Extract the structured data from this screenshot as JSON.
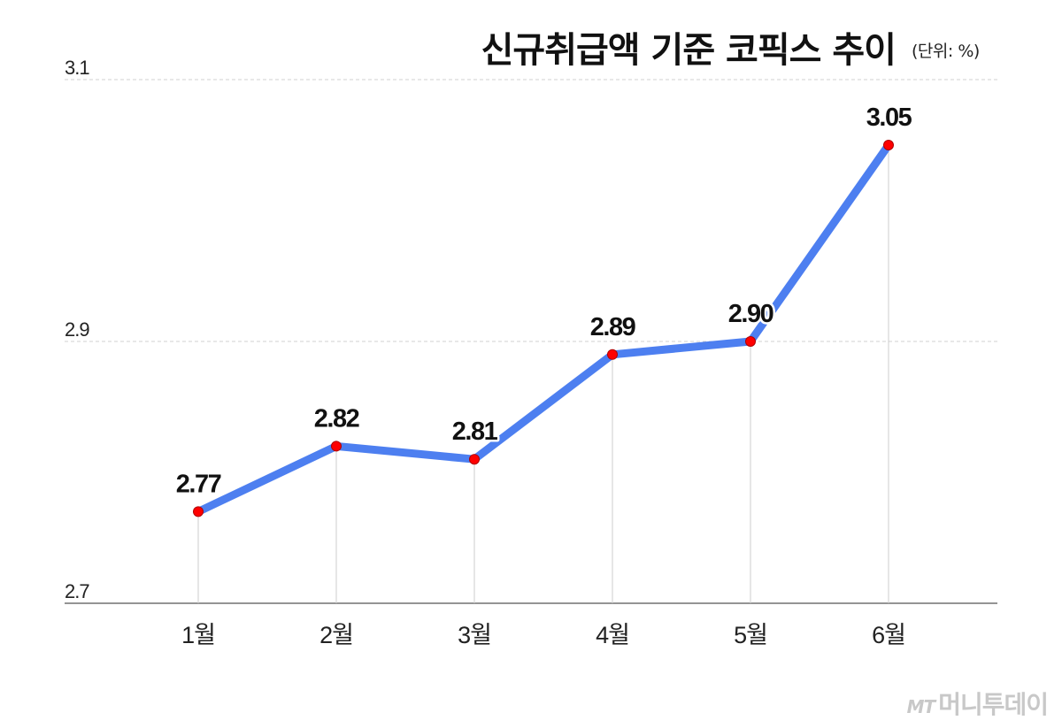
{
  "chart_data": {
    "type": "line",
    "title": "신규취급액 기준 코픽스 추이",
    "unit": "(단위: %)",
    "categories": [
      "1월",
      "2월",
      "3월",
      "4월",
      "5월",
      "6월"
    ],
    "values": [
      2.77,
      2.82,
      2.81,
      2.89,
      2.9,
      3.05
    ],
    "data_labels": [
      "2.77",
      "2.82",
      "2.81",
      "2.89",
      "2.90",
      "3.05"
    ],
    "y_ticks": [
      "2.7",
      "2.9",
      "3.1"
    ],
    "ylim": [
      2.7,
      3.1
    ],
    "grid": "horizontal dashed",
    "line_color": "#4d7ff0",
    "marker_color": "#ff0000"
  },
  "watermark": {
    "logo": "MT",
    "text": "머니투데이"
  }
}
